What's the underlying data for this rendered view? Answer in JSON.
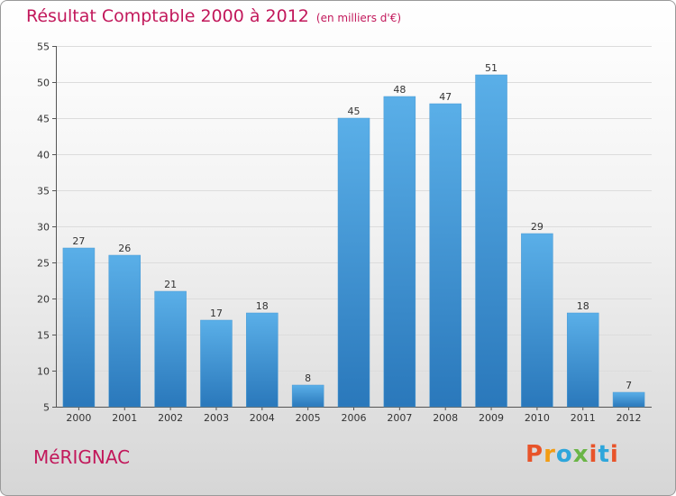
{
  "colors": {
    "title": "#c2185b",
    "bar_top": "#5aafe8",
    "bar_bottom": "#2a78bb",
    "brand": [
      "#e8542a",
      "#f39c12",
      "#2ea6db",
      "#6ab547",
      "#e8542a",
      "#2ea6db",
      "#e8542a"
    ]
  },
  "location": "MéRIGNAC",
  "brand": "Proxiti",
  "chart_data": {
    "type": "bar",
    "title": "Résultat Comptable 2000 à 2012",
    "subtitle": "(en milliers d'€)",
    "xlabel": "",
    "ylabel": "",
    "categories": [
      "2000",
      "2001",
      "2002",
      "2003",
      "2004",
      "2005",
      "2006",
      "2007",
      "2008",
      "2009",
      "2010",
      "2011",
      "2012"
    ],
    "values": [
      27,
      26,
      21,
      17,
      18,
      8,
      45,
      48,
      47,
      51,
      29,
      18,
      7
    ],
    "ylim": [
      5,
      55
    ],
    "yticks": [
      5,
      10,
      15,
      20,
      25,
      30,
      35,
      40,
      45,
      50,
      55
    ],
    "grid": true
  }
}
